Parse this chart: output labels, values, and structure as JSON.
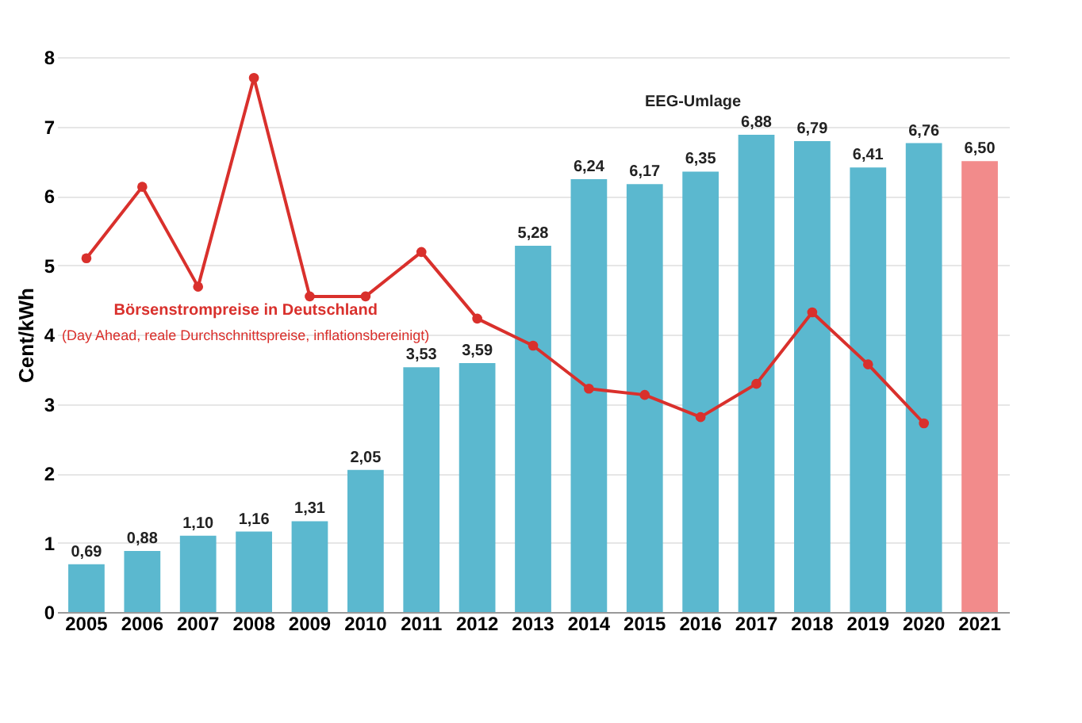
{
  "chart_data": {
    "type": "bar",
    "ylabel": "Cent/kWh",
    "categories": [
      "2005",
      "2006",
      "2007",
      "2008",
      "2009",
      "2010",
      "2011",
      "2012",
      "2013",
      "2014",
      "2015",
      "2016",
      "2017",
      "2018",
      "2019",
      "2020",
      "2021"
    ],
    "series": [
      {
        "name": "EEG-Umlage",
        "colors": [
          "#5bb8cf",
          "#5bb8cf",
          "#5bb8cf",
          "#5bb8cf",
          "#5bb8cf",
          "#5bb8cf",
          "#5bb8cf",
          "#5bb8cf",
          "#5bb8cf",
          "#5bb8cf",
          "#5bb8cf",
          "#5bb8cf",
          "#5bb8cf",
          "#5bb8cf",
          "#5bb8cf",
          "#5bb8cf",
          "#f28b8b"
        ],
        "values": [
          0.69,
          0.88,
          1.1,
          1.16,
          1.31,
          2.05,
          3.53,
          3.59,
          5.28,
          6.24,
          6.17,
          6.35,
          6.88,
          6.79,
          6.41,
          6.76,
          6.5
        ],
        "value_labels": [
          "0,69",
          "0,88",
          "1,10",
          "1,16",
          "1,31",
          "2,05",
          "3,53",
          "3,59",
          "5,28",
          "6,24",
          "6,17",
          "6,35",
          "6,88",
          "6,79",
          "6,41",
          "6,76",
          "6,50"
        ]
      },
      {
        "name": "Börsenstrompreise in Deutschland",
        "type": "line",
        "color": "#d9302c",
        "values": [
          5.1,
          6.13,
          4.69,
          7.7,
          4.55,
          4.55,
          5.19,
          4.23,
          3.84,
          3.22,
          3.13,
          2.81,
          3.29,
          4.32,
          3.57,
          2.72,
          null
        ]
      }
    ],
    "annotations": [
      "(Day Ahead, reale Durchschnittspreise, inflationsbereinigt)"
    ],
    "ylim": [
      0,
      8
    ],
    "yticks": [
      0,
      1,
      2,
      3,
      4,
      5,
      6,
      7,
      8
    ],
    "grid": "y",
    "marker": "circle"
  }
}
